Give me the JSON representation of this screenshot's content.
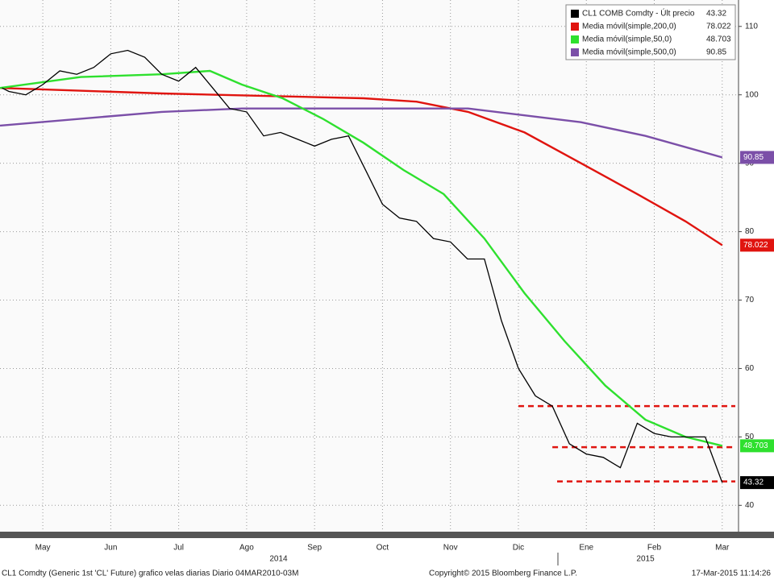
{
  "chart_data": {
    "type": "line",
    "x_tick_units": "months",
    "xlim": [
      -0.63,
      10.24
    ],
    "ylim": [
      36.15,
      113.86
    ],
    "yticks": [
      40,
      50,
      60,
      70,
      80,
      90,
      100,
      110
    ],
    "xticks": [
      {
        "value": 0,
        "label": "May"
      },
      {
        "value": 1,
        "label": "Jun"
      },
      {
        "value": 2,
        "label": "Jul"
      },
      {
        "value": 3,
        "label": "Ago"
      },
      {
        "value": 4,
        "label": "Sep"
      },
      {
        "value": 5,
        "label": "Oct"
      },
      {
        "value": 6,
        "label": "Nov"
      },
      {
        "value": 7,
        "label": "Dic"
      },
      {
        "value": 8,
        "label": "Ene"
      },
      {
        "value": 9,
        "label": "Feb"
      },
      {
        "value": 10,
        "label": "Mar"
      }
    ],
    "year_ticks": [
      {
        "value": 3.47,
        "label": "2014"
      },
      {
        "value": 8.87,
        "label": "2015"
      }
    ],
    "grid": true,
    "legend": "top-right",
    "series": [
      {
        "name": "CL1 COMB Comdty - Últ precio",
        "color": "#000000",
        "last": 43.32,
        "x": [
          -0.6,
          -0.5,
          -0.25,
          0,
          0.25,
          0.5,
          0.75,
          1,
          1.25,
          1.5,
          1.75,
          2,
          2.25,
          2.5,
          2.75,
          3,
          3.25,
          3.5,
          3.75,
          4,
          4.25,
          4.5,
          4.75,
          5,
          5.25,
          5.5,
          5.75,
          6,
          6.25,
          6.5,
          6.75,
          7,
          7.25,
          7.5,
          7.75,
          8,
          8.25,
          8.5,
          8.75,
          9,
          9.25,
          9.5,
          9.75,
          10
        ],
        "values": [
          101,
          100.5,
          100,
          101.5,
          103.5,
          103,
          104,
          106,
          106.5,
          105.5,
          103,
          102,
          104,
          101,
          98,
          97.5,
          94,
          94.5,
          93.5,
          92.5,
          93.5,
          94,
          89,
          84,
          82,
          81.5,
          79,
          78.5,
          76,
          76,
          67,
          60,
          56,
          54.5,
          49,
          47.5,
          47,
          45.5,
          52,
          50.5,
          50,
          50,
          50,
          43.32
        ]
      },
      {
        "name": "Media móvil(simple,200,0)",
        "color": "#e0140f",
        "last": 78.022,
        "x": [
          -0.63,
          1.75,
          4.72,
          5.5,
          6.26,
          7.09,
          7.92,
          8.75,
          9.46,
          10
        ],
        "values": [
          101,
          100.2,
          99.5,
          99,
          97.5,
          94.5,
          90,
          85.5,
          81.5,
          78.022
        ]
      },
      {
        "name": "Media móvil(simple,50,0)",
        "color": "#2ee02e",
        "last": 48.703,
        "x": [
          -0.63,
          -0.04,
          0.56,
          1.75,
          2.46,
          2.93,
          3.53,
          4.12,
          4.72,
          5.31,
          5.9,
          6.5,
          7.09,
          7.68,
          8.28,
          8.87,
          9.46,
          10
        ],
        "values": [
          101,
          101.8,
          102.6,
          103,
          103.5,
          101.5,
          99.5,
          96.5,
          93,
          89,
          85.5,
          79,
          71,
          64,
          57.5,
          52.5,
          50,
          48.703
        ]
      },
      {
        "name": "Media móvil(simple,500,0)",
        "color": "#7b4fa8",
        "last": 90.85,
        "x": [
          -0.63,
          1.75,
          2.93,
          6.26,
          7.09,
          7.92,
          8.87,
          10
        ],
        "values": [
          95.5,
          97.5,
          98,
          98,
          97,
          96,
          94,
          90.85
        ]
      }
    ],
    "reference_lines": [
      {
        "value": 54.5,
        "x_start": 7.0,
        "color": "#e0140f"
      },
      {
        "value": 48.5,
        "x_start": 7.5,
        "color": "#e0140f"
      },
      {
        "value": 43.5,
        "x_start": 7.57,
        "color": "#e0140f"
      }
    ],
    "source": "CL1 Comdty (Generic 1st 'CL' Future) grafico velas diarias  Diario 04MAR2010-03M",
    "copyright": "Copyright© 2015 Bloomberg Finance L.P.",
    "timestamp": "17-Mar-2015 11:14:26"
  }
}
